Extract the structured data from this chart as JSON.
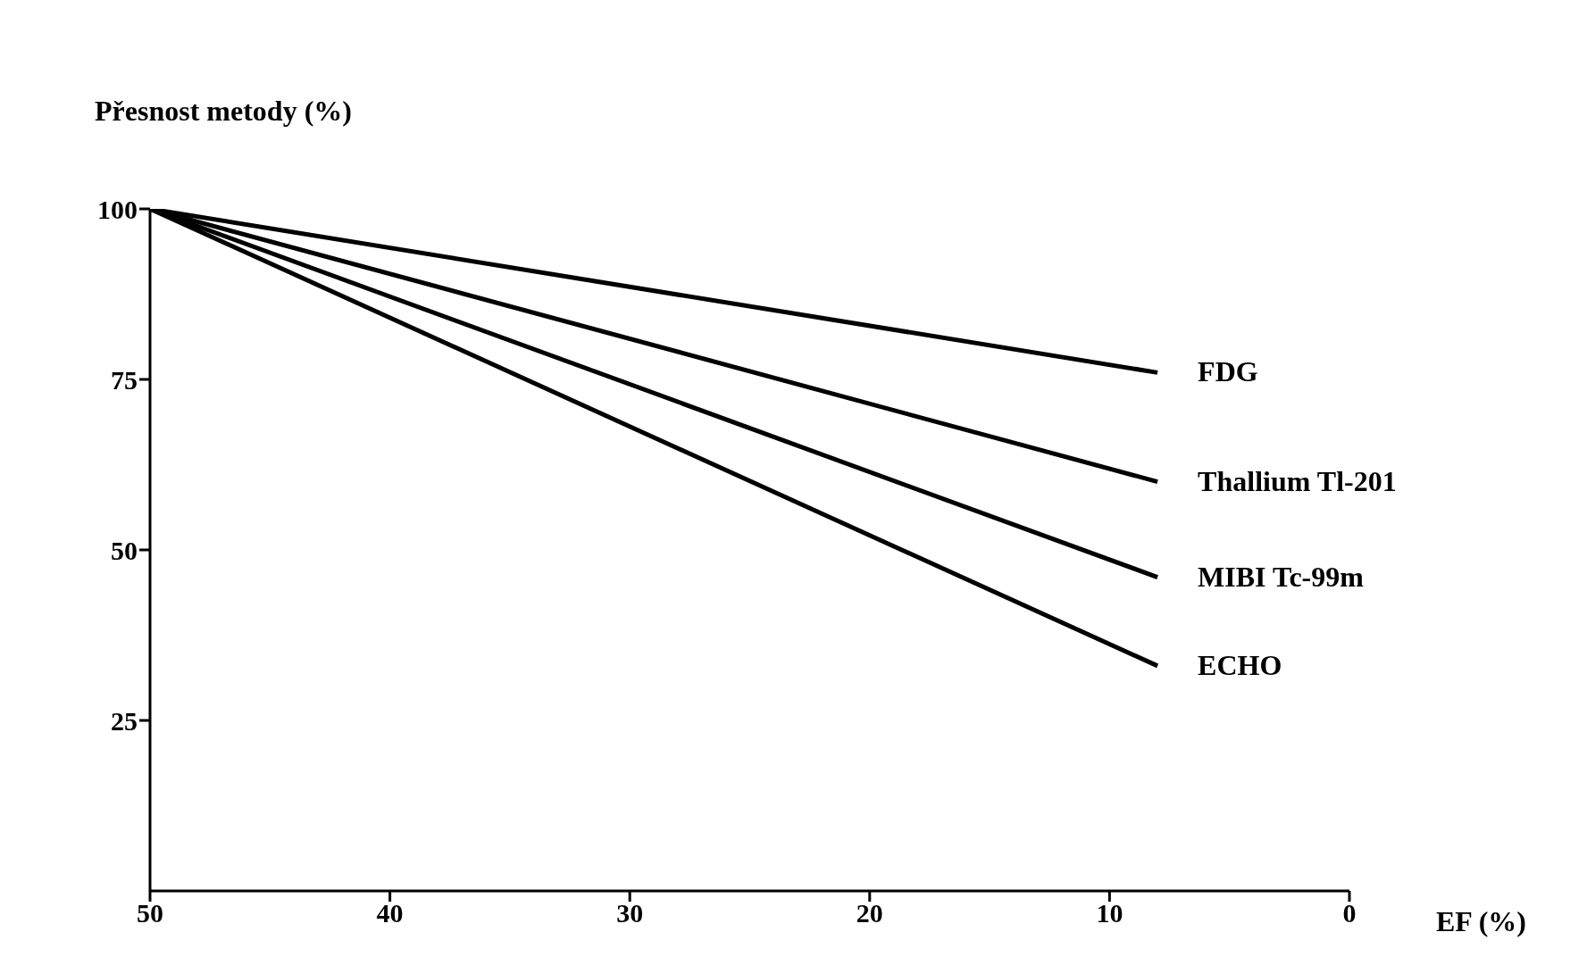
{
  "chart_data": {
    "type": "line",
    "ylabel": "Přesnost metody (%)",
    "xlabel": "EF (%)",
    "x": [
      50,
      8
    ],
    "xlim": [
      50,
      0
    ],
    "xticks": [
      50,
      40,
      30,
      20,
      10,
      0
    ],
    "ylim": [
      0,
      100
    ],
    "yticks": [
      25,
      50,
      75,
      100
    ],
    "grid": false,
    "legend": false,
    "marker": "none",
    "line_style": "solid",
    "series": [
      {
        "name": "FDG",
        "color": "#000000",
        "values": [
          100,
          76
        ]
      },
      {
        "name": "Thallium Tl-201",
        "color": "#000000",
        "values": [
          100,
          60
        ]
      },
      {
        "name": "MIBI Tc-99m",
        "color": "#000000",
        "values": [
          100,
          46
        ]
      },
      {
        "name": "ECHO",
        "color": "#000000",
        "values": [
          100,
          33
        ]
      }
    ]
  }
}
